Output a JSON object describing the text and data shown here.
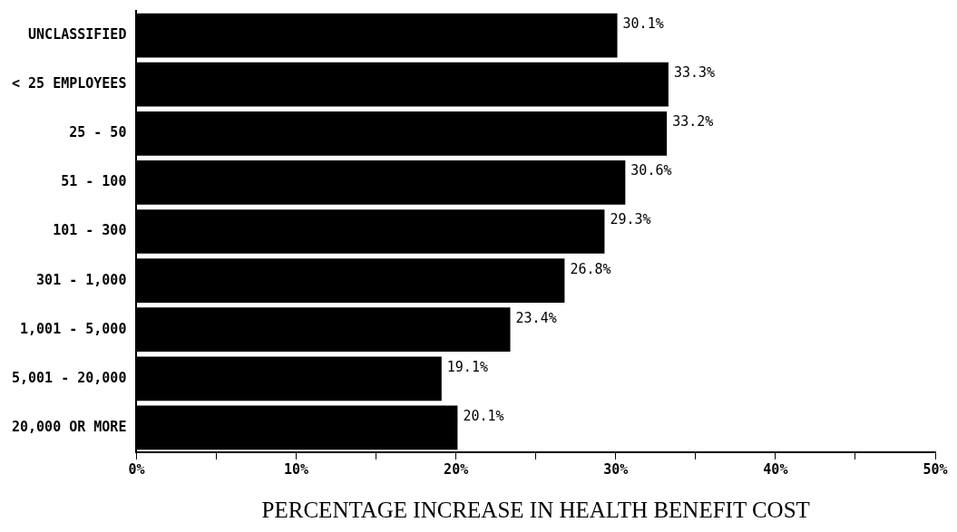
{
  "chart_data": {
    "type": "bar",
    "orientation": "horizontal",
    "xlabel": "PERCENTAGE INCREASE IN HEALTH BENEFIT COST",
    "categories": [
      "UNCLASSIFIED",
      "< 25 EMPLOYEES",
      "25 - 50",
      "51 - 100",
      "101 - 300",
      "301 - 1,000",
      "1,001 - 5,000",
      "5,001 - 20,000",
      "20,000 OR MORE"
    ],
    "values": [
      30.1,
      33.3,
      33.2,
      30.6,
      29.3,
      26.8,
      23.4,
      19.1,
      20.1
    ],
    "value_labels": [
      "30.1%",
      "33.3%",
      "33.2%",
      "30.6%",
      "29.3%",
      "26.8%",
      "23.4%",
      "19.1%",
      "20.1%"
    ],
    "color": "#000000",
    "xlim": [
      0,
      50
    ],
    "xticks": [
      {
        "value": 0,
        "label": "0%"
      },
      {
        "value": 5,
        "label": null
      },
      {
        "value": 10,
        "label": "10%"
      },
      {
        "value": 15,
        "label": null
      },
      {
        "value": 20,
        "label": "20%"
      },
      {
        "value": 25,
        "label": null
      },
      {
        "value": 30,
        "label": "30%"
      },
      {
        "value": 35,
        "label": null
      },
      {
        "value": 40,
        "label": "40%"
      },
      {
        "value": 45,
        "label": null
      },
      {
        "value": 50,
        "label": "50%"
      }
    ],
    "grid": false,
    "legend": false
  }
}
